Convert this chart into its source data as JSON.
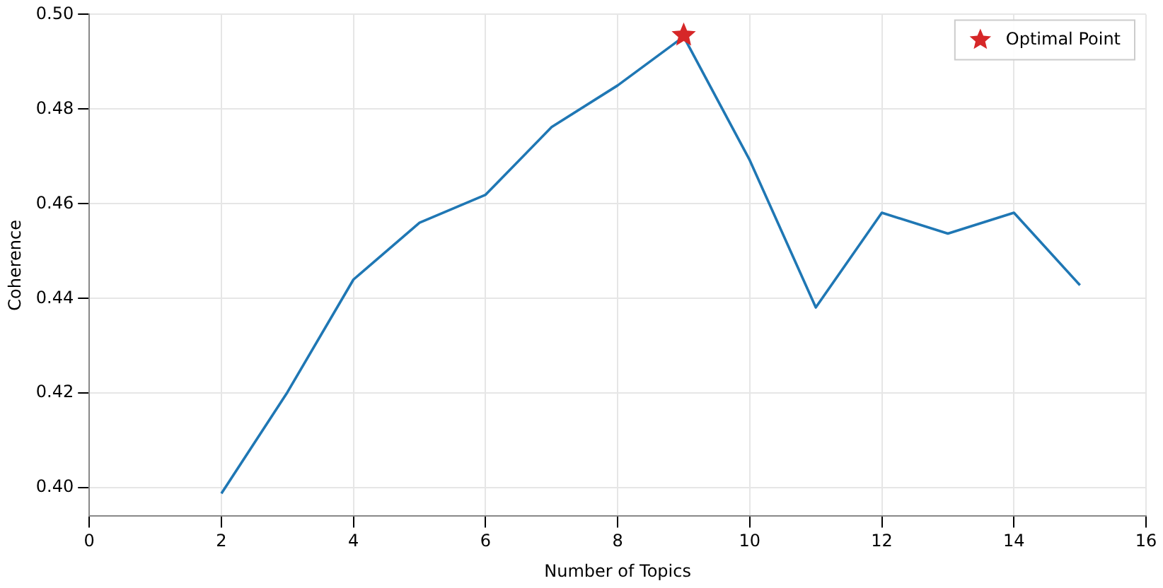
{
  "chart_data": {
    "type": "line",
    "xlabel": "Number of Topics",
    "ylabel": "Coherence",
    "x": [
      2,
      3,
      4,
      5,
      6,
      7,
      8,
      9,
      10,
      11,
      12,
      13,
      14,
      15
    ],
    "series": [
      {
        "color": "#1f77b4",
        "values": [
          0.3988,
          0.4202,
          0.444,
          0.456,
          0.4619,
          0.4762,
          0.485,
          0.4953,
          0.4692,
          0.4381,
          0.4581,
          0.4537,
          0.4581,
          0.4428
        ]
      },
      {
        "type": "scatter",
        "name": "Optimal Point",
        "color": "#d62728",
        "marker": "star",
        "x": [
          9
        ],
        "values": [
          0.4956
        ]
      }
    ],
    "xlim": [
      0,
      16
    ],
    "xticks": [
      0,
      2,
      4,
      6,
      8,
      10,
      12,
      14,
      16
    ],
    "ylim": [
      0.394,
      0.5
    ],
    "yticks": [
      {
        "value": 0.4,
        "label": "0.40"
      },
      {
        "value": 0.42,
        "label": "0.42"
      },
      {
        "value": 0.44,
        "label": "0.44"
      },
      {
        "value": 0.46,
        "label": "0.46"
      },
      {
        "value": 0.48,
        "label": "0.48"
      },
      {
        "value": 0.5,
        "label": "0.50"
      }
    ],
    "grid": true,
    "legend": "top right",
    "marker": "none",
    "line_style": "solid"
  }
}
